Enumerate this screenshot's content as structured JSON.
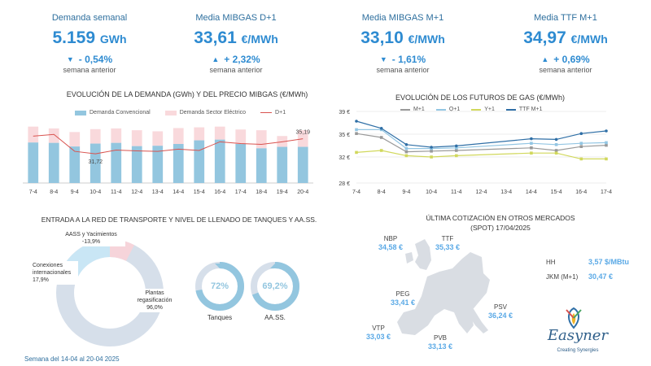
{
  "kpis": [
    {
      "label": "Demanda semanal",
      "value": "5.159",
      "unit": "GWh",
      "direction": "down",
      "change": "- 0,54%",
      "sub": "semana anterior"
    },
    {
      "label": "Media MIBGAS D+1",
      "value": "33,61",
      "unit": "€/MWh",
      "direction": "up",
      "change": "+ 2,32%",
      "sub": "semana anterior"
    },
    {
      "label": "Media MIBGAS M+1",
      "value": "33,10",
      "unit": "€/MWh",
      "direction": "down",
      "change": "- 1,61%",
      "sub": "semana anterior"
    },
    {
      "label": "Media TTF M+1",
      "value": "34,97",
      "unit": "€/MWh",
      "direction": "up",
      "change": "+ 0,69%",
      "sub": "semana anterior"
    }
  ],
  "demand_chart_title": "EVOLUCIÓN DE LA DEMANDA (GWh) Y DEL PRECIO MIBGAS (€/MWh)",
  "futures_chart_title": "EVOLUCIÓN DE LOS FUTUROS DE GAS (€/MWh)",
  "network_title": "ENTRADA A LA RED DE TRANSPORTE Y NIVEL DE LLENADO DE TANQUES Y AA.SS.",
  "map_title": "ÚLTIMA COTIZACIÓN EN OTROS MERCADOS (SPOT) 17/04/2025",
  "footer": "Semana del 14-04 al 20-04 2025",
  "logo": {
    "name": "Easyner",
    "tagline": "Creating Synergies"
  },
  "colors": {
    "conv": "#93c6df",
    "elec": "#f9d9dc",
    "d1": "#d9534f",
    "m1": "#999999",
    "q1": "#93c6e3",
    "y1": "#d1d85c",
    "ttf": "#2f6fa6",
    "donut_main": "#d6dfea",
    "donut_conn": "#c9e6f5",
    "donut_aass": "#f6d4da"
  },
  "markets": [
    {
      "name": "NBP",
      "value": "34,58 €"
    },
    {
      "name": "TTF",
      "value": "35,33 €"
    },
    {
      "name": "PEG",
      "value": "33,41 €"
    },
    {
      "name": "PSV",
      "value": "36,24 €"
    },
    {
      "name": "VTP",
      "value": "33,03 €"
    },
    {
      "name": "PVB",
      "value": "33,13 €"
    }
  ],
  "other_prices": [
    {
      "name": "HH",
      "value": "3,57 $/MBtu"
    },
    {
      "name": "JKM (M+1)",
      "value": "30,47 €"
    }
  ],
  "donut": {
    "segments": [
      {
        "name": "AASS y Yacimientos",
        "value": "-13,9%",
        "pct": 13.9
      },
      {
        "name": "Conexiones internacionales",
        "value": "17,9%",
        "pct": 17.9
      },
      {
        "name": "Plantas regasificación",
        "value": "96,0%",
        "pct": 96.0
      }
    ]
  },
  "gauges": [
    {
      "name": "Tanques",
      "value": "72%",
      "level": 72
    },
    {
      "name": "AA.SS.",
      "value": "69,2%",
      "level": 69.2
    }
  ],
  "chart_data": [
    {
      "type": "bar",
      "title": "EVOLUCIÓN DE LA DEMANDA (GWh) Y DEL PRECIO MIBGAS (€/MWh)",
      "categories": [
        "7-4",
        "8-4",
        "9-4",
        "10-4",
        "11-4",
        "12-4",
        "13-4",
        "14-4",
        "15-4",
        "16-4",
        "17-4",
        "18-4",
        "19-4",
        "20-4"
      ],
      "stacked": true,
      "series": [
        {
          "name": "Demanda Convencional",
          "values": [
            560,
            555,
            505,
            545,
            555,
            510,
            515,
            540,
            590,
            600,
            540,
            480,
            500,
            500
          ]
        },
        {
          "name": "Demanda Sector Eléctrico",
          "values": [
            220,
            200,
            200,
            200,
            200,
            220,
            200,
            220,
            180,
            180,
            200,
            250,
            150,
            230
          ]
        },
        {
          "name": "D+1",
          "values": [
            35.8,
            36.2,
            32.3,
            31.72,
            32.6,
            32.4,
            32.3,
            32.8,
            32.5,
            34.5,
            34.1,
            33.9,
            34.5,
            35.19
          ]
        }
      ],
      "data_labels": [
        {
          "series": "D+1",
          "category": "10-4",
          "text": "31,72"
        },
        {
          "series": "D+1",
          "category": "20-4",
          "text": "35,19"
        }
      ],
      "legend": "top",
      "ylim_bars": [
        0,
        900
      ],
      "ylim_line": [
        25,
        40
      ]
    },
    {
      "type": "line",
      "title": "EVOLUCIÓN DE LOS FUTUROS DE GAS (€/MWh)",
      "categories": [
        "7-4",
        "8-4",
        "9-4",
        "10-4",
        "11-4",
        "12-4",
        "13-4",
        "14-4",
        "15-4",
        "16-4",
        "17-4"
      ],
      "yticks": [
        "39 €",
        "35 €",
        "32 €",
        "28 €"
      ],
      "ylim": [
        28,
        39
      ],
      "series": [
        {
          "name": "M+1",
          "values": [
            35.6,
            35.0,
            32.8,
            32.9,
            33.0,
            null,
            null,
            33.4,
            33.0,
            33.6,
            33.8
          ]
        },
        {
          "name": "Q+1",
          "values": [
            36.2,
            36.2,
            33.3,
            33.3,
            33.4,
            null,
            null,
            34.1,
            33.9,
            34.1,
            34.2
          ]
        },
        {
          "name": "Y+1",
          "values": [
            32.7,
            33.0,
            32.2,
            32.0,
            32.2,
            null,
            null,
            32.6,
            32.6,
            31.7,
            31.7
          ]
        },
        {
          "name": "TTF M+1",
          "values": [
            37.5,
            36.4,
            33.9,
            33.5,
            33.7,
            null,
            null,
            34.8,
            34.7,
            35.6,
            36.0
          ]
        }
      ],
      "legend": "top"
    }
  ]
}
